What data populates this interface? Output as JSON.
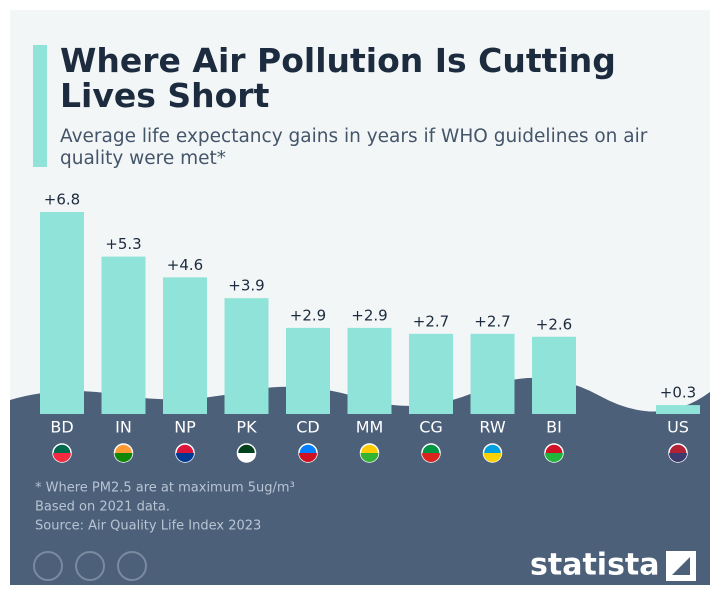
{
  "chart_data": {
    "type": "bar",
    "title": "Where Air Pollution Is Cutting Lives Short",
    "subtitle": "Average life expectancy gains in years if WHO guidelines on air quality were met*",
    "categories": [
      "BD",
      "IN",
      "NP",
      "PK",
      "CD",
      "MM",
      "CG",
      "RW",
      "BI",
      "US"
    ],
    "values": [
      6.8,
      5.3,
      4.6,
      3.9,
      2.9,
      2.9,
      2.7,
      2.7,
      2.6,
      0.3
    ],
    "value_labels": [
      "+6.8",
      "+5.3",
      "+4.6",
      "+3.9",
      "+2.9",
      "+2.9",
      "+2.7",
      "+2.7",
      "+2.6",
      "+0.3"
    ],
    "color": "#8fe3d8",
    "notes": [
      "* Where PM2.5 are at maximum 5ug/m³",
      "Based on 2021 data.",
      "Source: Air Quality Life Index 2023"
    ],
    "brand": "statista"
  }
}
